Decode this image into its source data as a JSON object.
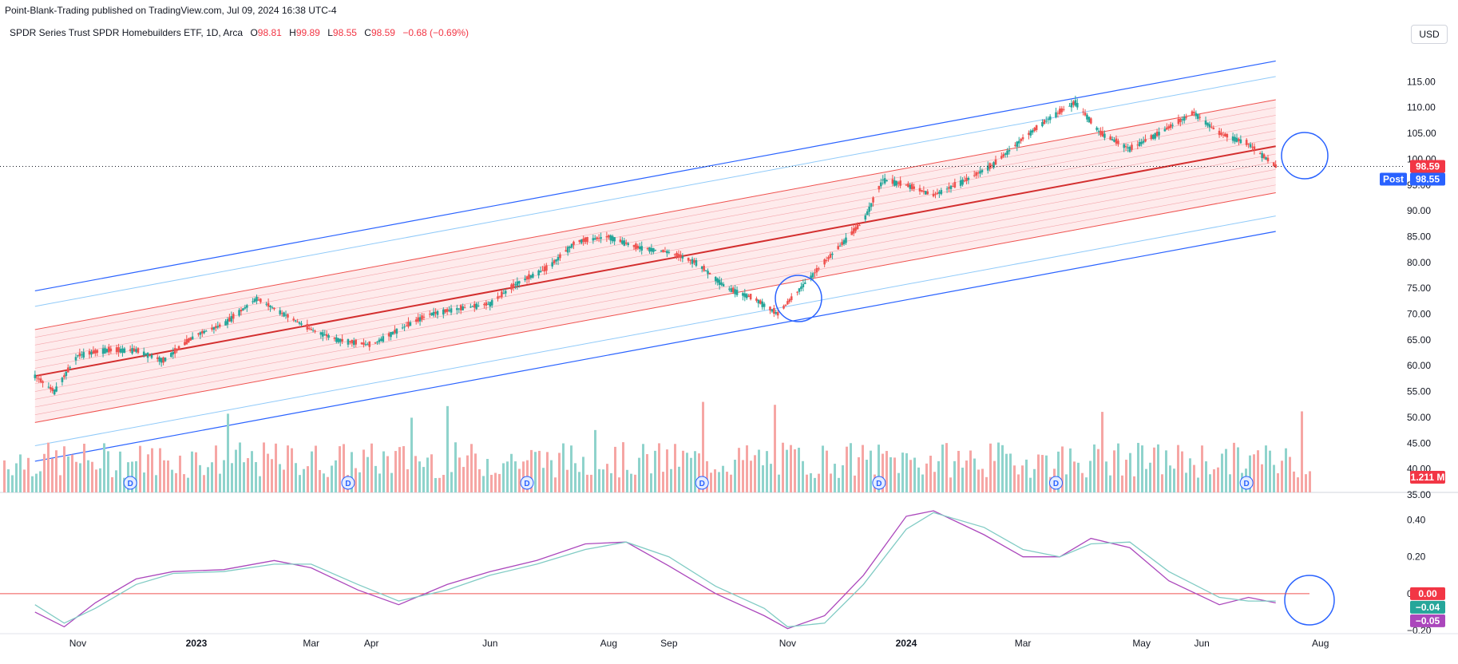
{
  "header": {
    "published": "Point-Blank-Trading published on TradingView.com, Jul 09, 2024 16:38 UTC-4",
    "symbol": "SPDR Series Trust SPDR Homebuilders ETF, 1D, Arca",
    "o_label": "O",
    "o_value": "98.81",
    "h_label": "H",
    "h_value": "99.89",
    "l_label": "L",
    "l_value": "98.55",
    "c_label": "C",
    "c_value": "98.59",
    "change": "−0.68 (−0.69%)",
    "currency": "USD"
  },
  "chart_data": [
    {
      "type": "line",
      "title": "",
      "ylim": [
        35,
        120
      ],
      "yticks": [
        "115.00",
        "110.00",
        "105.00",
        "100.00",
        "95.00",
        "90.00",
        "85.00",
        "80.00",
        "75.00",
        "70.00",
        "65.00",
        "60.00",
        "55.00",
        "50.00",
        "45.00",
        "40.00",
        "35.00"
      ],
      "xticks": [
        "Nov",
        "2023",
        "Mar",
        "Apr",
        "Jun",
        "Aug",
        "Sep",
        "Nov",
        "2024",
        "Mar",
        "May",
        "Jun",
        "Aug"
      ],
      "series": [
        {
          "x": [
            "2022-10-10",
            "2022-10-20",
            "2022-11-01",
            "2022-11-15",
            "2022-12-01",
            "2022-12-15",
            "2023-01-01",
            "2023-01-15",
            "2023-02-01",
            "2023-02-15",
            "2023-03-01",
            "2023-03-15",
            "2023-04-01",
            "2023-04-15",
            "2023-05-01",
            "2023-05-15",
            "2023-06-01",
            "2023-06-15",
            "2023-07-01",
            "2023-07-15",
            "2023-08-01",
            "2023-08-15",
            "2023-09-01",
            "2023-09-15",
            "2023-10-01",
            "2023-10-15",
            "2023-10-27",
            "2023-11-10",
            "2023-11-25",
            "2023-12-10",
            "2023-12-20",
            "2024-01-01",
            "2024-01-15",
            "2024-02-01",
            "2024-02-15",
            "2024-03-01",
            "2024-03-15",
            "2024-03-28",
            "2024-04-10",
            "2024-04-25",
            "2024-05-10",
            "2024-05-28",
            "2024-06-10",
            "2024-06-25",
            "2024-07-09"
          ],
          "values": [
            58,
            55,
            62,
            63,
            63,
            61,
            66,
            68,
            73,
            70,
            67,
            65,
            64,
            67,
            70,
            71,
            72,
            76,
            79,
            84,
            85,
            83,
            82,
            80,
            75,
            73,
            70,
            76,
            82,
            88,
            96,
            95,
            93,
            96,
            99,
            104,
            108,
            111,
            105,
            102,
            105,
            109,
            105,
            103,
            98.59
          ]
        }
      ],
      "last_price": "98.59",
      "post_label": "Post",
      "post_price": "98.55",
      "volume_label": "1.211 M",
      "dividend_marker": "D"
    },
    {
      "type": "line",
      "ylim": [
        -0.2,
        0.45
      ],
      "yticks": [
        "0.40",
        "0.20",
        "0.00",
        "−0.20"
      ],
      "series": [
        {
          "x": [
            "2022-10-10",
            "2022-10-25",
            "2022-11-10",
            "2022-12-01",
            "2022-12-20",
            "2023-01-15",
            "2023-02-10",
            "2023-03-01",
            "2023-03-25",
            "2023-04-15",
            "2023-05-10",
            "2023-06-01",
            "2023-06-25",
            "2023-07-20",
            "2023-08-10",
            "2023-09-01",
            "2023-09-25",
            "2023-10-20",
            "2023-11-01",
            "2023-11-20",
            "2023-12-10",
            "2024-01-01",
            "2024-01-15",
            "2024-02-10",
            "2024-03-01",
            "2024-03-20",
            "2024-04-05",
            "2024-04-25",
            "2024-05-15",
            "2024-06-10",
            "2024-06-25",
            "2024-07-09"
          ],
          "values": [
            -0.1,
            -0.18,
            -0.05,
            0.08,
            0.12,
            0.13,
            0.18,
            0.14,
            0.02,
            -0.06,
            0.05,
            0.12,
            0.18,
            0.27,
            0.28,
            0.15,
            0.0,
            -0.12,
            -0.19,
            -0.12,
            0.1,
            0.42,
            0.45,
            0.32,
            0.2,
            0.2,
            0.3,
            0.25,
            0.07,
            -0.06,
            -0.02,
            -0.05
          ]
        },
        {
          "x": [
            "2022-10-10",
            "2022-10-25",
            "2022-11-10",
            "2022-12-01",
            "2022-12-20",
            "2023-01-15",
            "2023-02-10",
            "2023-03-01",
            "2023-03-25",
            "2023-04-15",
            "2023-05-10",
            "2023-06-01",
            "2023-06-25",
            "2023-07-20",
            "2023-08-10",
            "2023-09-01",
            "2023-09-25",
            "2023-10-20",
            "2023-11-01",
            "2023-11-20",
            "2023-12-10",
            "2024-01-01",
            "2024-01-15",
            "2024-02-10",
            "2024-03-01",
            "2024-03-20",
            "2024-04-05",
            "2024-04-25",
            "2024-05-15",
            "2024-06-10",
            "2024-06-25",
            "2024-07-09"
          ],
          "values": [
            -0.06,
            -0.16,
            -0.08,
            0.05,
            0.11,
            0.12,
            0.16,
            0.16,
            0.05,
            -0.04,
            0.02,
            0.1,
            0.16,
            0.24,
            0.28,
            0.2,
            0.04,
            -0.08,
            -0.18,
            -0.16,
            0.05,
            0.35,
            0.44,
            0.36,
            0.24,
            0.2,
            0.27,
            0.28,
            0.12,
            -0.02,
            -0.04,
            -0.04
          ]
        }
      ],
      "zero_label": "0.00",
      "teal_label": "−0.04",
      "purple_label": "−0.05"
    }
  ],
  "colors": {
    "up": "#26a69a",
    "down": "#ef5350",
    "channel": "#2962ff",
    "mid": "#d32f2f",
    "fill": "#fde2e4"
  }
}
